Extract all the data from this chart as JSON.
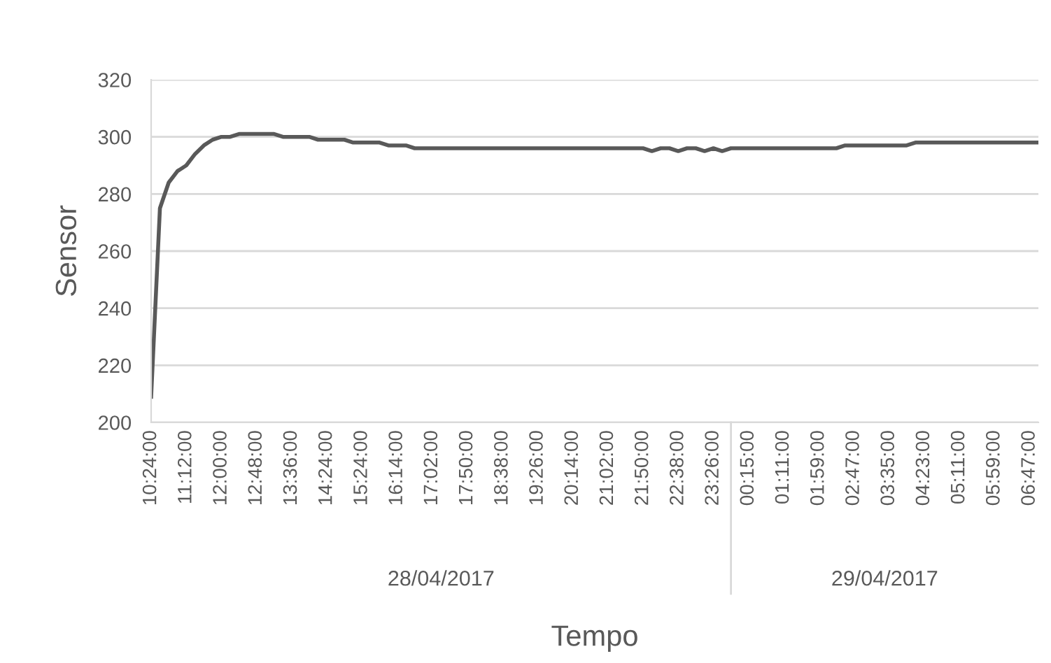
{
  "chart_data": {
    "type": "line",
    "xlabel": "Tempo",
    "ylabel": "Sensor",
    "categories": [
      "10:24:00",
      null,
      null,
      null,
      "11:12:00",
      null,
      null,
      null,
      "12:00:00",
      null,
      null,
      null,
      "12:48:00",
      null,
      null,
      null,
      "13:36:00",
      null,
      null,
      null,
      "14:24:00",
      null,
      null,
      null,
      "15:24:00",
      null,
      null,
      null,
      "16:14:00",
      null,
      null,
      null,
      "17:02:00",
      null,
      null,
      null,
      "17:50:00",
      null,
      null,
      null,
      "18:38:00",
      null,
      null,
      null,
      "19:26:00",
      null,
      null,
      null,
      "20:14:00",
      null,
      null,
      null,
      "21:02:00",
      null,
      null,
      null,
      "21:50:00",
      null,
      null,
      null,
      "22:38:00",
      null,
      null,
      null,
      "23:26:00",
      null,
      null,
      null,
      "00:15:00",
      null,
      null,
      null,
      "01:11:00",
      null,
      null,
      null,
      "01:59:00",
      null,
      null,
      null,
      "02:47:00",
      null,
      null,
      null,
      "03:35:00",
      null,
      null,
      null,
      "04:23:00",
      null,
      null,
      null,
      "05:11:00",
      null,
      null,
      null,
      "05:59:00",
      null,
      null,
      null,
      "06:47:00",
      null
    ],
    "series": [
      {
        "color": "#595959",
        "values": [
          209,
          275,
          284,
          288,
          290,
          294,
          297,
          299,
          300,
          300,
          301,
          301,
          301,
          301,
          301,
          300,
          300,
          300,
          300,
          299,
          299,
          299,
          299,
          298,
          298,
          298,
          298,
          297,
          297,
          297,
          296,
          296,
          296,
          296,
          296,
          296,
          296,
          296,
          296,
          296,
          296,
          296,
          296,
          296,
          296,
          296,
          296,
          296,
          296,
          296,
          296,
          296,
          296,
          296,
          296,
          296,
          296,
          295,
          296,
          296,
          295,
          296,
          296,
          295,
          296,
          295,
          296,
          296,
          296,
          296,
          296,
          296,
          296,
          296,
          296,
          296,
          296,
          296,
          296,
          297,
          297,
          297,
          297,
          297,
          297,
          297,
          297,
          298,
          298,
          298,
          298,
          298,
          298,
          298,
          298,
          298,
          298,
          298,
          298,
          298,
          298,
          298
        ]
      }
    ],
    "ylim": [
      200,
      320
    ],
    "yticks": [
      200,
      220,
      240,
      260,
      280,
      300,
      320
    ],
    "grid": "y",
    "marker": "none",
    "line_style": "solid",
    "annotations": [
      "28/04/2017",
      "29/04/2017"
    ]
  }
}
